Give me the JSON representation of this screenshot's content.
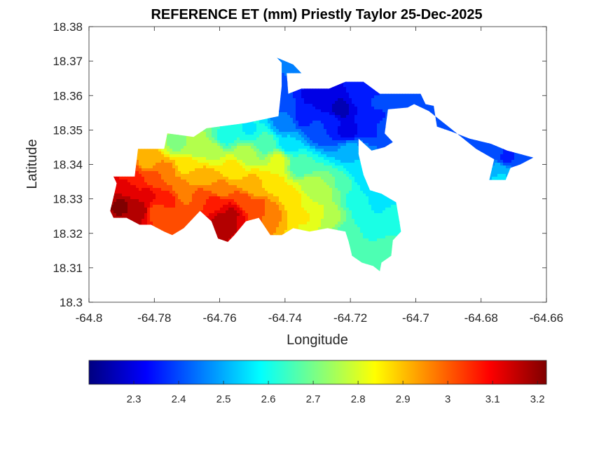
{
  "chart_data": {
    "type": "heatmap",
    "title": "REFERENCE ET (mm) Priestly Taylor 25-Dec-2025",
    "xlabel": "Longitude",
    "ylabel": "Latitude",
    "xlim": [
      -64.8,
      -64.66
    ],
    "ylim": [
      18.3,
      18.38
    ],
    "xticks": [
      "-64.8",
      "-64.78",
      "-64.76",
      "-64.74",
      "-64.72",
      "-64.7",
      "-64.68",
      "-64.66"
    ],
    "xtick_values": [
      -64.8,
      -64.78,
      -64.76,
      -64.74,
      -64.72,
      -64.7,
      -64.68,
      -64.66
    ],
    "yticks": [
      "18.3",
      "18.31",
      "18.32",
      "18.33",
      "18.34",
      "18.35",
      "18.36",
      "18.37",
      "18.38"
    ],
    "ytick_values": [
      18.3,
      18.31,
      18.32,
      18.33,
      18.34,
      18.35,
      18.36,
      18.37,
      18.38
    ],
    "colormap": "jet",
    "clim": [
      2.2,
      3.22
    ],
    "colorbar_ticks": [
      "2.3",
      "2.4",
      "2.5",
      "2.6",
      "2.7",
      "2.8",
      "2.9",
      "3",
      "3.1",
      "3.2"
    ],
    "colorbar_tick_values": [
      2.3,
      2.4,
      2.5,
      2.6,
      2.7,
      2.8,
      2.9,
      3.0,
      3.1,
      3.2
    ],
    "colorbar_location": "bottom",
    "grid": false,
    "island_outline": [
      [
        -64.7925,
        18.3365
      ],
      [
        -64.786,
        18.3365
      ],
      [
        -64.785,
        18.3445
      ],
      [
        -64.777,
        18.3445
      ],
      [
        -64.776,
        18.349
      ],
      [
        -64.768,
        18.348
      ],
      [
        -64.764,
        18.3505
      ],
      [
        -64.752,
        18.352
      ],
      [
        -64.742,
        18.354
      ],
      [
        -64.741,
        18.363
      ],
      [
        -64.741,
        18.3695
      ],
      [
        -64.7425,
        18.371
      ],
      [
        -64.7375,
        18.369
      ],
      [
        -64.735,
        18.3665
      ],
      [
        -64.7395,
        18.3665
      ],
      [
        -64.739,
        18.3605
      ],
      [
        -64.735,
        18.362
      ],
      [
        -64.7265,
        18.362
      ],
      [
        -64.7215,
        18.364
      ],
      [
        -64.716,
        18.364
      ],
      [
        -64.711,
        18.3605
      ],
      [
        -64.6985,
        18.3605
      ],
      [
        -64.697,
        18.3575
      ],
      [
        -64.6945,
        18.357
      ],
      [
        -64.6935,
        18.351
      ],
      [
        -64.689,
        18.3495
      ],
      [
        -64.6835,
        18.3475
      ],
      [
        -64.677,
        18.346
      ],
      [
        -64.672,
        18.344
      ],
      [
        -64.668,
        18.343
      ],
      [
        -64.664,
        18.342
      ],
      [
        -64.668,
        18.34
      ],
      [
        -64.671,
        18.339
      ],
      [
        -64.6725,
        18.3355
      ],
      [
        -64.6775,
        18.3355
      ],
      [
        -64.676,
        18.3415
      ],
      [
        -64.6815,
        18.3445
      ],
      [
        -64.692,
        18.3525
      ],
      [
        -64.696,
        18.3555
      ],
      [
        -64.7005,
        18.3575
      ],
      [
        -64.7025,
        18.3565
      ],
      [
        -64.7085,
        18.356
      ],
      [
        -64.7095,
        18.349
      ],
      [
        -64.707,
        18.3465
      ],
      [
        -64.7095,
        18.345
      ],
      [
        -64.7135,
        18.344
      ],
      [
        -64.7175,
        18.3475
      ],
      [
        -64.7175,
        18.343
      ],
      [
        -64.716,
        18.337
      ],
      [
        -64.714,
        18.3325
      ],
      [
        -64.7105,
        18.3315
      ],
      [
        -64.706,
        18.329
      ],
      [
        -64.705,
        18.3235
      ],
      [
        -64.7045,
        18.3205
      ],
      [
        -64.707,
        18.318
      ],
      [
        -64.7075,
        18.3135
      ],
      [
        -64.7105,
        18.3115
      ],
      [
        -64.711,
        18.309
      ],
      [
        -64.713,
        18.3105
      ],
      [
        -64.7165,
        18.3115
      ],
      [
        -64.7195,
        18.3135
      ],
      [
        -64.7205,
        18.3175
      ],
      [
        -64.7215,
        18.3205
      ],
      [
        -64.727,
        18.3215
      ],
      [
        -64.7325,
        18.3205
      ],
      [
        -64.7375,
        18.3215
      ],
      [
        -64.741,
        18.3195
      ],
      [
        -64.7445,
        18.3195
      ],
      [
        -64.748,
        18.3245
      ],
      [
        -64.752,
        18.3235
      ],
      [
        -64.7555,
        18.3195
      ],
      [
        -64.7575,
        18.3175
      ],
      [
        -64.7605,
        18.3185
      ],
      [
        -64.7625,
        18.3235
      ],
      [
        -64.766,
        18.3265
      ],
      [
        -64.771,
        18.3215
      ],
      [
        -64.7745,
        18.3195
      ],
      [
        -64.777,
        18.3205
      ],
      [
        -64.781,
        18.3225
      ],
      [
        -64.7845,
        18.3225
      ],
      [
        -64.7885,
        18.3245
      ],
      [
        -64.7925,
        18.3245
      ],
      [
        -64.7935,
        18.3265
      ],
      [
        -64.7925,
        18.3305
      ],
      [
        -64.7915,
        18.3345
      ]
    ],
    "field_points": [
      [
        -64.79,
        18.328,
        3.2
      ],
      [
        -64.788,
        18.333,
        3.12
      ],
      [
        -64.785,
        18.327,
        3.18
      ],
      [
        -64.782,
        18.331,
        3.1
      ],
      [
        -64.779,
        18.326,
        3.02
      ],
      [
        -64.78,
        18.336,
        3.02
      ],
      [
        -64.782,
        18.341,
        2.92
      ],
      [
        -64.776,
        18.338,
        2.95
      ],
      [
        -64.771,
        18.333,
        2.96
      ],
      [
        -64.768,
        18.336,
        2.92
      ],
      [
        -64.766,
        18.331,
        3.0
      ],
      [
        -64.762,
        18.329,
        3.08
      ],
      [
        -64.759,
        18.323,
        3.18
      ],
      [
        -64.756,
        18.326,
        3.15
      ],
      [
        -64.753,
        18.329,
        3.02
      ],
      [
        -64.748,
        18.327,
        3.02
      ],
      [
        -64.75,
        18.334,
        2.9
      ],
      [
        -64.756,
        18.339,
        2.85
      ],
      [
        -64.762,
        18.343,
        2.78
      ],
      [
        -64.768,
        18.345,
        2.74
      ],
      [
        -64.773,
        18.346,
        2.72
      ],
      [
        -64.77,
        18.34,
        2.85
      ],
      [
        -64.764,
        18.337,
        2.9
      ],
      [
        -64.758,
        18.348,
        2.62
      ],
      [
        -64.751,
        18.35,
        2.58
      ],
      [
        -64.746,
        18.346,
        2.66
      ],
      [
        -64.742,
        18.341,
        2.8
      ],
      [
        -64.744,
        18.334,
        2.88
      ],
      [
        -64.744,
        18.326,
        2.95
      ],
      [
        -64.738,
        18.33,
        2.86
      ],
      [
        -64.734,
        18.325,
        2.84
      ],
      [
        -64.73,
        18.326,
        2.8
      ],
      [
        -64.726,
        18.325,
        2.76
      ],
      [
        -64.732,
        18.333,
        2.78
      ],
      [
        -64.727,
        18.332,
        2.74
      ],
      [
        -64.723,
        18.334,
        2.68
      ],
      [
        -64.735,
        18.34,
        2.64
      ],
      [
        -64.739,
        18.346,
        2.54
      ],
      [
        -64.74,
        18.352,
        2.45
      ],
      [
        -64.738,
        18.358,
        2.38
      ],
      [
        -64.734,
        18.354,
        2.35
      ],
      [
        -64.73,
        18.35,
        2.4
      ],
      [
        -64.726,
        18.352,
        2.36
      ],
      [
        -64.723,
        18.356,
        2.26
      ],
      [
        -64.721,
        18.35,
        2.3
      ],
      [
        -64.728,
        18.359,
        2.3
      ],
      [
        -64.733,
        18.36,
        2.32
      ],
      [
        -64.717,
        18.36,
        2.34
      ],
      [
        -64.712,
        18.358,
        2.38
      ],
      [
        -64.715,
        18.352,
        2.35
      ],
      [
        -64.71,
        18.351,
        2.38
      ],
      [
        -64.704,
        18.358,
        2.4
      ],
      [
        -64.699,
        18.358,
        2.38
      ],
      [
        -64.69,
        18.35,
        2.4
      ],
      [
        -64.682,
        18.346,
        2.42
      ],
      [
        -64.676,
        18.344,
        2.4
      ],
      [
        -64.672,
        18.342,
        2.36
      ],
      [
        -64.668,
        18.341,
        2.42
      ],
      [
        -64.674,
        18.338,
        2.52
      ],
      [
        -64.674,
        18.336,
        2.54
      ],
      [
        -64.72,
        18.344,
        2.5
      ],
      [
        -64.717,
        18.338,
        2.56
      ],
      [
        -64.714,
        18.334,
        2.56
      ],
      [
        -64.711,
        18.329,
        2.54
      ],
      [
        -64.708,
        18.325,
        2.6
      ],
      [
        -64.716,
        18.326,
        2.62
      ],
      [
        -64.719,
        18.33,
        2.62
      ],
      [
        -64.712,
        18.321,
        2.6
      ],
      [
        -64.71,
        18.316,
        2.66
      ],
      [
        -64.714,
        18.313,
        2.68
      ],
      [
        -64.718,
        18.316,
        2.64
      ],
      [
        -64.72,
        18.32,
        2.64
      ],
      [
        -64.752,
        18.343,
        2.76
      ],
      [
        -64.76,
        18.333,
        2.95
      ],
      [
        -64.776,
        18.33,
        3.05
      ],
      [
        -64.786,
        18.336,
        3.05
      ],
      [
        -64.742,
        18.364,
        2.42
      ],
      [
        -64.738,
        18.368,
        2.45
      ]
    ]
  }
}
